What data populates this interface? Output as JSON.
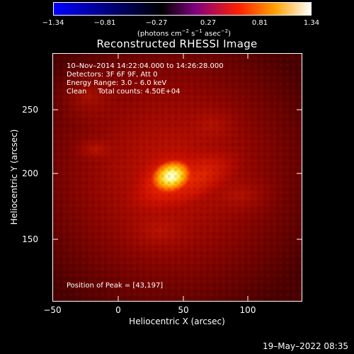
{
  "colorbar": {
    "ticks": [
      "−1.34",
      "−0.81",
      "−0.27",
      "0.27",
      "0.81",
      "1.34"
    ],
    "unit_prefix": "(photons cm",
    "unit_sup1": "−2",
    "unit_mid": " s",
    "unit_sup2": "−1",
    "unit_mid2": " asec",
    "unit_sup3": "−2",
    "unit_suffix": ")",
    "colors": [
      "#0000ff",
      "#000000",
      "#800080",
      "#ff2000",
      "#ffa000",
      "#ffffff"
    ]
  },
  "title": "Reconstructed RHESSI Image",
  "info": {
    "time_range": "10–Nov–2014 14:22:04.000 to 14:26:28.000",
    "detectors": "Detectors: 3F 6F 9F, Att 0",
    "energy": "Energy Range: 3.0 – 6.0 keV",
    "method": "Clean     Total counts: 4.50E+04"
  },
  "peak": "Position of Peak = [43,197]",
  "axes": {
    "x_label": "Heliocentric X (arcsec)",
    "y_label": "Heliocentric Y (arcsec)",
    "x_ticks": [
      "−50",
      "0",
      "50",
      "100"
    ],
    "y_ticks": [
      "250",
      "200",
      "150"
    ]
  },
  "timestamp": "19–May–2022 08:35"
}
